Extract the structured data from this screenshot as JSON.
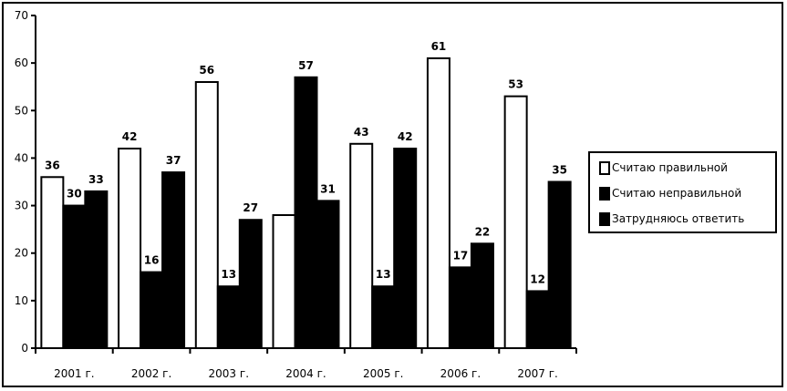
{
  "chart_data": {
    "type": "bar",
    "title": "",
    "xlabel": "",
    "ylabel": "",
    "ylim": [
      0,
      70
    ],
    "yticks": [
      0,
      10,
      20,
      30,
      40,
      50,
      60,
      70
    ],
    "categories": [
      "2001 г.",
      "2002 г.",
      "2003 г.",
      "2004 г.",
      "2005 г.",
      "2006 г.",
      "2007 г."
    ],
    "series": [
      {
        "name": "Считаю правильной",
        "values": [
          36,
          42,
          56,
          28,
          43,
          61,
          53
        ],
        "color": "#ffffff"
      },
      {
        "name": "Считаю неправильной",
        "values": [
          30,
          16,
          13,
          57,
          13,
          17,
          12
        ],
        "color": "#000000"
      },
      {
        "name": "Затрудняюсь ответить",
        "values": [
          33,
          37,
          27,
          31,
          42,
          22,
          35
        ],
        "color": "#000000"
      }
    ],
    "data_labels": [
      [
        "36",
        "42",
        "56",
        "",
        "43",
        "61",
        "53"
      ],
      [
        "30",
        "16",
        "13",
        "57",
        "13",
        "17",
        "12"
      ],
      [
        "33",
        "37",
        "27",
        "31",
        "42",
        "22",
        "35"
      ]
    ],
    "grid": false,
    "legend_position": "right"
  }
}
